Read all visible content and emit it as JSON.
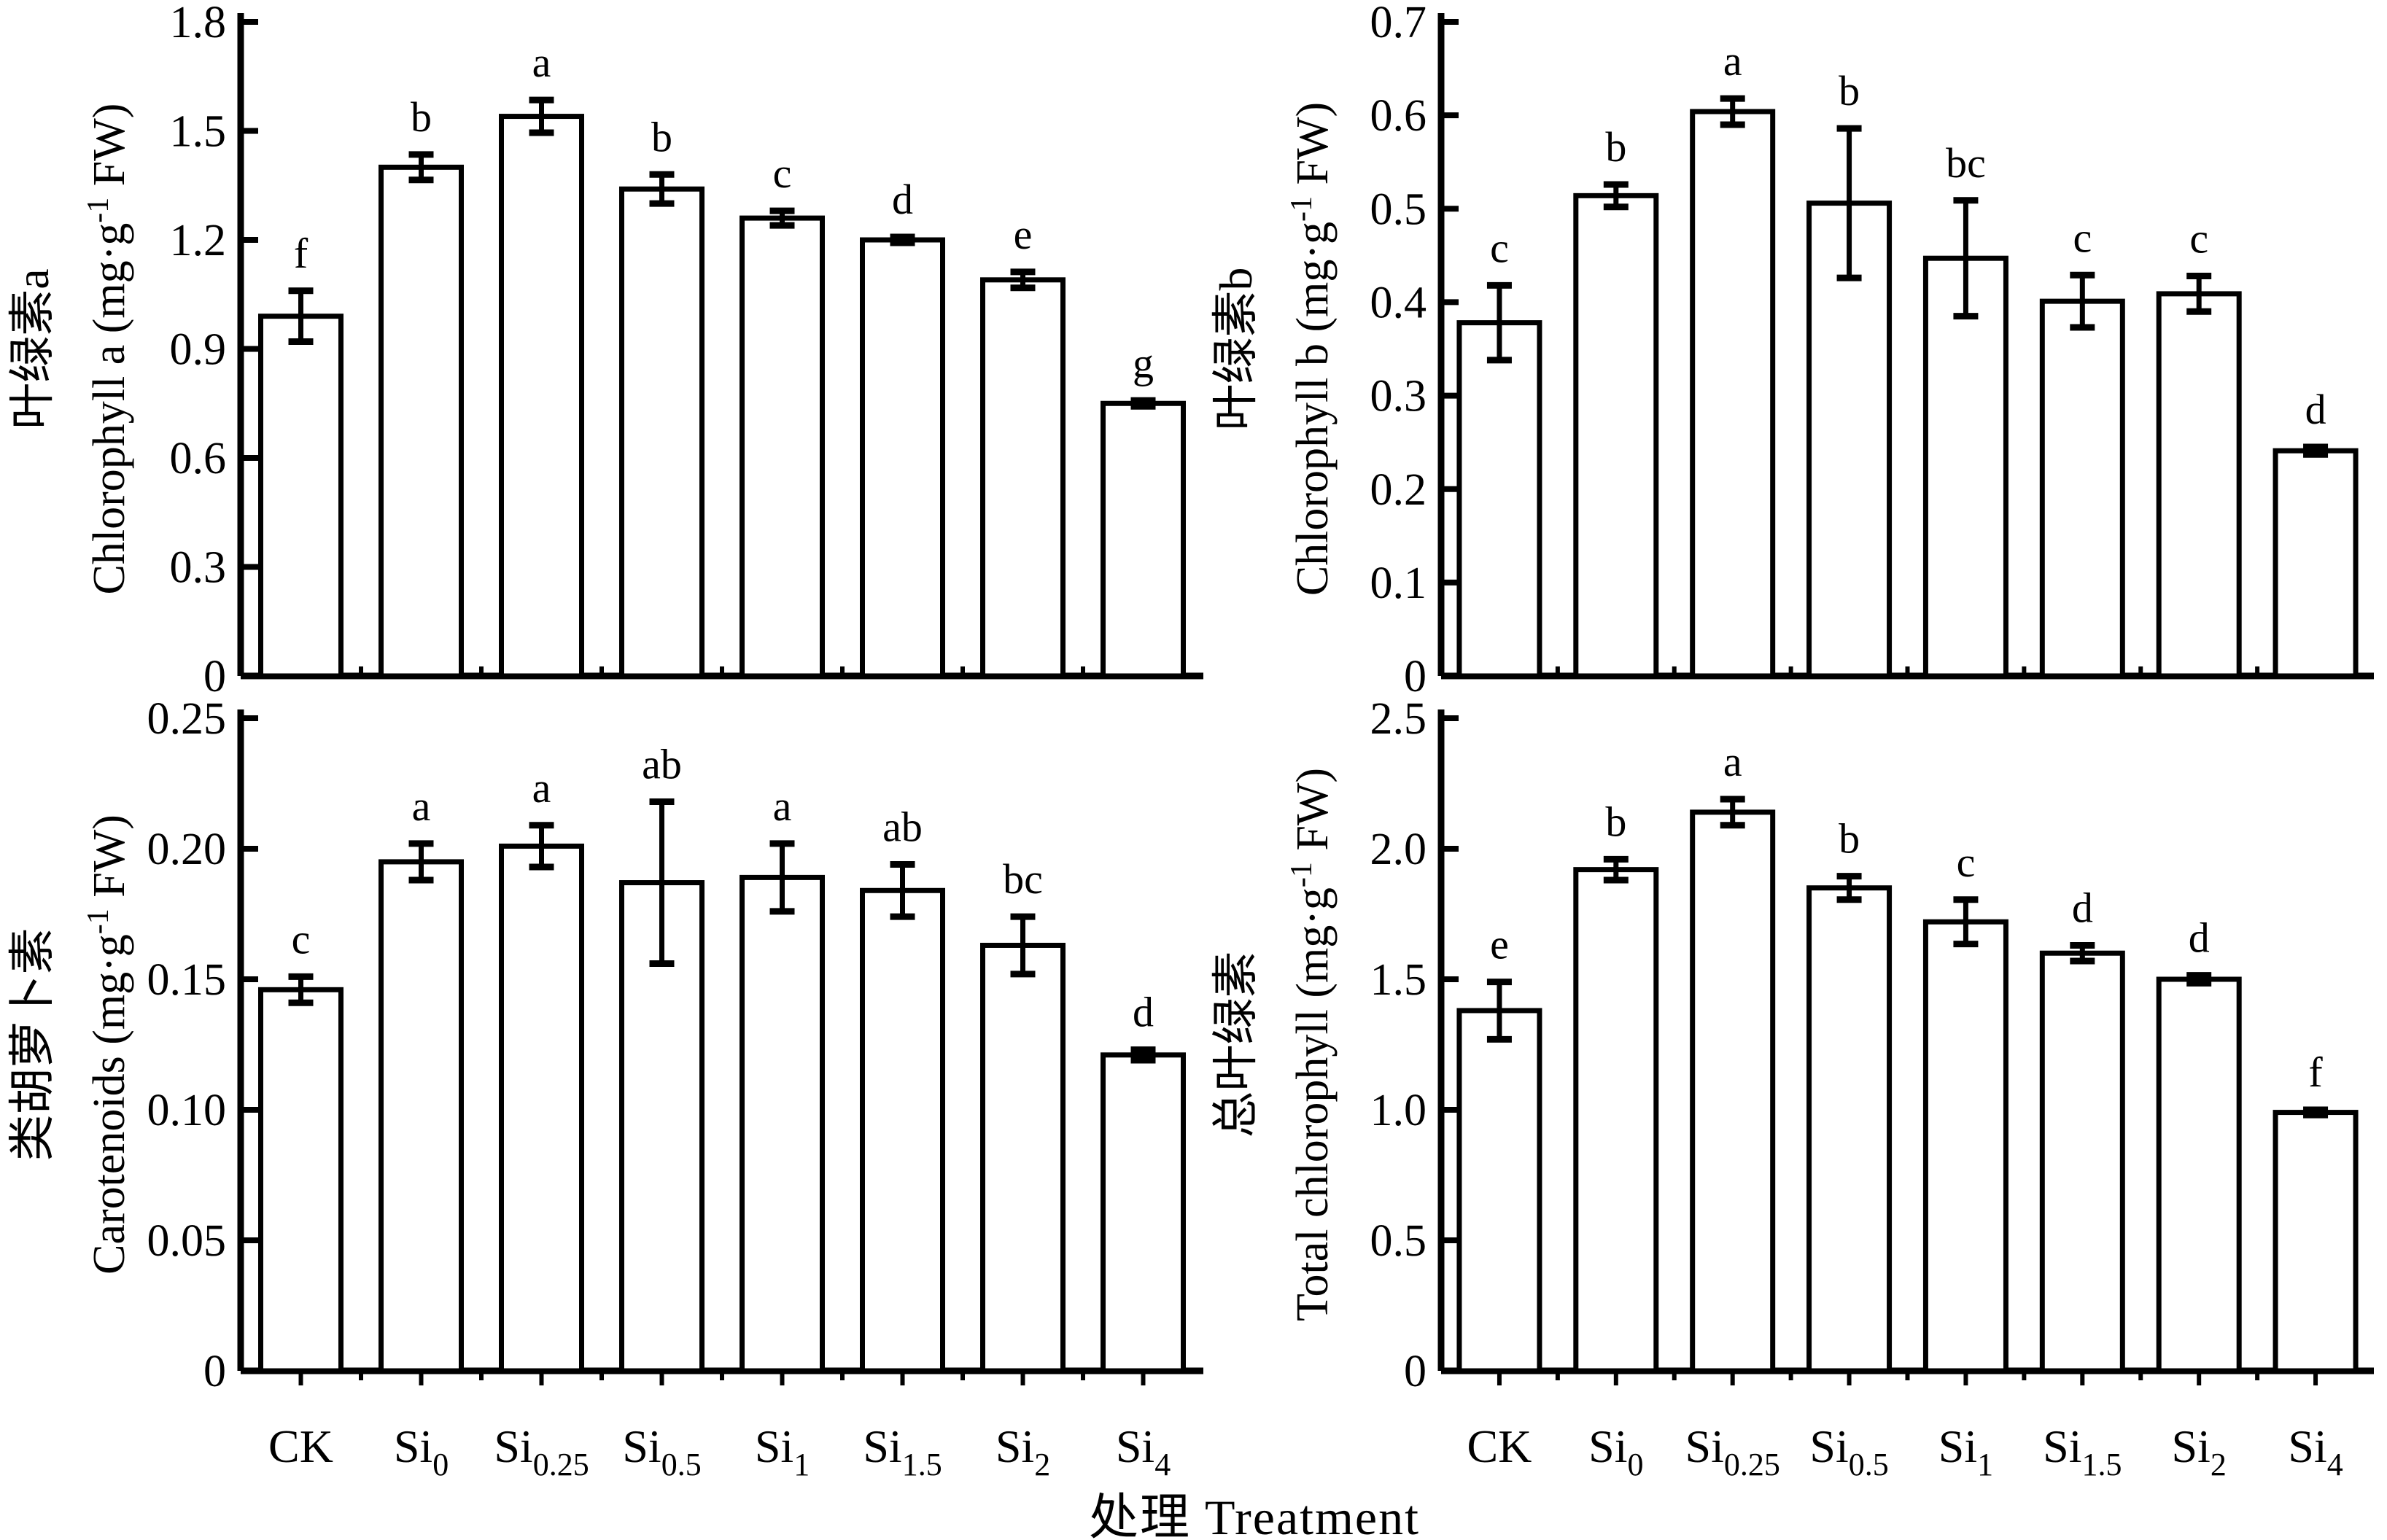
{
  "figure": {
    "xlabel": "处理 Treatment",
    "categories_display": [
      {
        "base": "CK",
        "sub": ""
      },
      {
        "base": "Si",
        "sub": "0"
      },
      {
        "base": "Si",
        "sub": "0.25"
      },
      {
        "base": "Si",
        "sub": "0.5"
      },
      {
        "base": "Si",
        "sub": "1"
      },
      {
        "base": "Si",
        "sub": "1.5"
      },
      {
        "base": "Si",
        "sub": "2"
      },
      {
        "base": "Si",
        "sub": "4"
      }
    ],
    "ink_color": "#000000",
    "background_color": "#ffffff"
  },
  "chart_data": [
    {
      "id": "chlorophyll-a",
      "type": "bar",
      "title_zh": "叶绿素a",
      "ylabel_en": "Chlorophyll a",
      "unit_pre": "(mg·g",
      "unit_sup": "-1",
      "unit_post": " FW)",
      "xlabel": "处理 Treatment",
      "categories": [
        "CK",
        "Si0",
        "Si0.25",
        "Si0.5",
        "Si1",
        "Si1.5",
        "Si2",
        "Si4"
      ],
      "values": [
        0.99,
        1.4,
        1.54,
        1.34,
        1.26,
        1.2,
        1.09,
        0.75
      ],
      "errors": [
        0.07,
        0.035,
        0.045,
        0.04,
        0.02,
        0.008,
        0.022,
        0.008
      ],
      "letters": [
        "f",
        "b",
        "a",
        "b",
        "c",
        "d",
        "e",
        "g"
      ],
      "ylim": [
        0,
        1.8
      ],
      "ytick_values": [
        0,
        0.3,
        0.6,
        0.9,
        1.2,
        1.5,
        1.8
      ],
      "ytick_labels": [
        "0",
        "0.3",
        "0.6",
        "0.9",
        "1.2",
        "1.5",
        "1.8"
      ],
      "grid": false,
      "legend": "none"
    },
    {
      "id": "chlorophyll-b",
      "type": "bar",
      "title_zh": "叶绿素b",
      "ylabel_en": "Chlorophyll b",
      "unit_pre": "(mg·g",
      "unit_sup": "-1",
      "unit_post": " FW)",
      "xlabel": "处理 Treatment",
      "categories": [
        "CK",
        "Si0",
        "Si0.25",
        "Si0.5",
        "Si1",
        "Si1.5",
        "Si2",
        "Si4"
      ],
      "values": [
        0.378,
        0.514,
        0.604,
        0.506,
        0.447,
        0.401,
        0.409,
        0.241
      ],
      "errors": [
        0.04,
        0.012,
        0.014,
        0.08,
        0.062,
        0.028,
        0.019,
        0.004
      ],
      "letters": [
        "c",
        "b",
        "a",
        "b",
        "bc",
        "c",
        "c",
        "d"
      ],
      "ylim": [
        0,
        0.7
      ],
      "ytick_values": [
        0,
        0.1,
        0.2,
        0.3,
        0.4,
        0.5,
        0.6,
        0.7
      ],
      "ytick_labels": [
        "0",
        "0.1",
        "0.2",
        "0.3",
        "0.4",
        "0.5",
        "0.6",
        "0.7"
      ],
      "grid": false,
      "legend": "none"
    },
    {
      "id": "carotenoids",
      "type": "bar",
      "title_zh": "类胡萝卜素",
      "ylabel_en": "Carotenoids",
      "unit_pre": "(mg·g",
      "unit_sup": "-1",
      "unit_post": " FW)",
      "xlabel": "处理 Treatment",
      "categories": [
        "CK",
        "Si0",
        "Si0.25",
        "Si0.5",
        "Si1",
        "Si1.5",
        "Si2",
        "Si4"
      ],
      "values": [
        0.146,
        0.195,
        0.201,
        0.187,
        0.189,
        0.184,
        0.163,
        0.121
      ],
      "errors": [
        0.005,
        0.007,
        0.008,
        0.031,
        0.013,
        0.01,
        0.011,
        0.002
      ],
      "letters": [
        "c",
        "a",
        "a",
        "ab",
        "a",
        "ab",
        "bc",
        "d"
      ],
      "ylim": [
        0,
        0.25
      ],
      "ytick_values": [
        0,
        0.05,
        0.1,
        0.15,
        0.2,
        0.25
      ],
      "ytick_labels": [
        "0",
        "0.05",
        "0.10",
        "0.15",
        "0.20",
        "0.25"
      ],
      "grid": false,
      "legend": "none"
    },
    {
      "id": "total-chlorophyll",
      "type": "bar",
      "title_zh": "总叶绿素",
      "ylabel_en": "Total chlorophyll",
      "unit_pre": "(mg·g",
      "unit_sup": "-1",
      "unit_post": " FW)",
      "xlabel": "处理 Treatment",
      "categories": [
        "CK",
        "Si0",
        "Si0.25",
        "Si0.5",
        "Si1",
        "Si1.5",
        "Si2",
        "Si4"
      ],
      "values": [
        1.38,
        1.92,
        2.14,
        1.85,
        1.72,
        1.6,
        1.5,
        0.99
      ],
      "errors": [
        0.11,
        0.04,
        0.05,
        0.045,
        0.085,
        0.03,
        0.015,
        0.01
      ],
      "letters": [
        "e",
        "b",
        "a",
        "b",
        "c",
        "d",
        "d",
        "f"
      ],
      "ylim": [
        0,
        2.5
      ],
      "ytick_values": [
        0,
        0.5,
        1.0,
        1.5,
        2.0,
        2.5
      ],
      "ytick_labels": [
        "0",
        "0.5",
        "1.0",
        "1.5",
        "2.0",
        "2.5"
      ],
      "grid": false,
      "legend": "none"
    }
  ]
}
